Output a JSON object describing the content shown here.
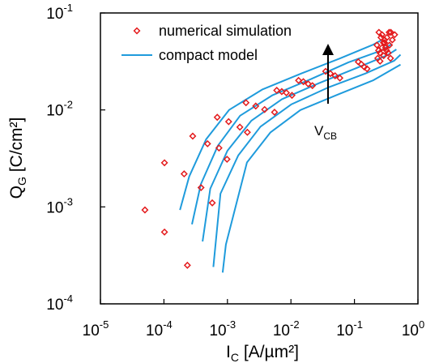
{
  "chart_data": {
    "type": "scatter",
    "title": "",
    "xlabel": {
      "main": "I",
      "sub": "C",
      "unit": " [A/µm²]"
    },
    "ylabel": {
      "main": "Q",
      "sub": "G",
      "unit": " [C/cm²]"
    },
    "x_scale": "log",
    "y_scale": "log",
    "xlim": [
      1e-05,
      1
    ],
    "ylim": [
      0.0001,
      0.1
    ],
    "x_ticks": [
      {
        "base": "10",
        "exp": "-5",
        "value": 1e-05
      },
      {
        "base": "10",
        "exp": "-4",
        "value": 0.0001
      },
      {
        "base": "10",
        "exp": "-3",
        "value": 0.001
      },
      {
        "base": "10",
        "exp": "-2",
        "value": 0.01
      },
      {
        "base": "10",
        "exp": "-1",
        "value": 0.1
      },
      {
        "base": "10",
        "exp": "0",
        "value": 1
      }
    ],
    "y_ticks": [
      {
        "base": "10",
        "exp": "-4",
        "value": 0.0001
      },
      {
        "base": "10",
        "exp": "-3",
        "value": 0.001
      },
      {
        "base": "10",
        "exp": "-2",
        "value": 0.01
      },
      {
        "base": "10",
        "exp": "-1",
        "value": 0.1
      }
    ],
    "grid": false,
    "legend": {
      "placement": "top-left",
      "entries": [
        {
          "label": "numerical simulation",
          "marker": "diamond",
          "color": "#e41a1c"
        },
        {
          "label": "compact model",
          "marker": "line",
          "color": "#1f9bdc"
        }
      ]
    },
    "annotation": {
      "main": "V",
      "sub": "CB",
      "arrow": "up",
      "x": 0.03,
      "y_from": 0.012,
      "y_to": 0.04
    },
    "series": [
      {
        "kind": "markers",
        "points": [
          [
            5.02e-05,
            0.00093
          ],
          [
            0.000102,
            0.00055
          ],
          [
            0.000234,
            0.00025
          ],
          [
            0.000102,
            0.00285
          ],
          [
            0.000208,
            0.00219
          ],
          [
            0.000384,
            0.00158
          ],
          [
            0.000577,
            0.0011
          ],
          [
            0.000284,
            0.00537
          ],
          [
            0.000486,
            0.00448
          ],
          [
            0.000736,
            0.00405
          ],
          [
            0.000985,
            0.0031
          ],
          [
            0.000691,
            0.0084
          ],
          [
            0.001045,
            0.00757
          ],
          [
            0.00157,
            0.00665
          ],
          [
            0.00206,
            0.00588
          ],
          [
            0.00196,
            0.01187
          ],
          [
            0.00279,
            0.01097
          ],
          [
            0.00385,
            0.0101
          ],
          [
            0.00552,
            0.00947
          ],
          [
            0.00598,
            0.01593
          ],
          [
            0.00717,
            0.01547
          ],
          [
            0.00847,
            0.01503
          ],
          [
            0.01038,
            0.01414
          ],
          [
            0.0132,
            0.02015
          ],
          [
            0.0157,
            0.01958
          ],
          [
            0.0187,
            0.01855
          ],
          [
            0.0218,
            0.01781
          ],
          [
            0.0352,
            0.025
          ],
          [
            0.0418,
            0.02371
          ],
          [
            0.0496,
            0.0225
          ],
          [
            0.0589,
            0.02133
          ],
          [
            0.115,
            0.03133
          ],
          [
            0.128,
            0.02965
          ],
          [
            0.143,
            0.02771
          ],
          [
            0.158,
            0.02657
          ],
          [
            0.233,
            0.0341
          ],
          [
            0.253,
            0.0387
          ],
          [
            0.272,
            0.0438
          ],
          [
            0.298,
            0.0494
          ],
          [
            0.325,
            0.0559
          ],
          [
            0.352,
            0.0631
          ],
          [
            0.243,
            0.0631
          ],
          [
            0.262,
            0.0559
          ],
          [
            0.286,
            0.0494
          ],
          [
            0.309,
            0.0438
          ],
          [
            0.34,
            0.0387
          ],
          [
            0.37,
            0.0341
          ],
          [
            0.253,
            0.0318
          ],
          [
            0.289,
            0.03632
          ],
          [
            0.321,
            0.0411
          ],
          [
            0.356,
            0.0466
          ],
          [
            0.395,
            0.0528
          ],
          [
            0.43,
            0.0597
          ],
          [
            0.272,
            0.0597
          ],
          [
            0.298,
            0.0528
          ],
          [
            0.226,
            0.0466
          ],
          [
            0.24,
            0.0411
          ],
          [
            0.374,
            0.0631
          ]
        ]
      },
      {
        "kind": "line",
        "points": [
          [
            0.000179,
            0.00093
          ],
          [
            0.00025,
            0.00206
          ],
          [
            0.000463,
            0.005
          ],
          [
            0.00106,
            0.01
          ],
          [
            0.00352,
            0.0162
          ],
          [
            0.0147,
            0.0238
          ],
          [
            0.0593,
            0.034
          ],
          [
            0.196,
            0.047
          ],
          [
            0.266,
            0.0525
          ]
        ]
      },
      {
        "kind": "line",
        "points": [
          [
            0.000276,
            0.00066
          ],
          [
            0.00038,
            0.00171
          ],
          [
            0.000708,
            0.00428
          ],
          [
            0.00158,
            0.00872
          ],
          [
            0.00515,
            0.0142
          ],
          [
            0.0207,
            0.0208
          ],
          [
            0.0804,
            0.031
          ],
          [
            0.266,
            0.041
          ],
          [
            0.375,
            0.0472
          ]
        ]
      },
      {
        "kind": "line",
        "points": [
          [
            0.000406,
            0.00044
          ],
          [
            0.000537,
            0.00154
          ],
          [
            0.001,
            0.0038
          ],
          [
            0.00237,
            0.00772
          ],
          [
            0.00721,
            0.0129
          ],
          [
            0.0278,
            0.0189
          ],
          [
            0.108,
            0.0271
          ],
          [
            0.336,
            0.0369
          ],
          [
            0.458,
            0.0421
          ]
        ]
      },
      {
        "kind": "line",
        "points": [
          [
            0.000599,
            0.00024
          ],
          [
            0.000776,
            0.00137
          ],
          [
            0.00148,
            0.00339
          ],
          [
            0.00331,
            0.00672
          ],
          [
            0.0101,
            0.0114
          ],
          [
            0.0383,
            0.017
          ],
          [
            0.148,
            0.0237
          ],
          [
            0.419,
            0.0321
          ],
          [
            0.532,
            0.0371
          ]
        ]
      },
      {
        "kind": "line",
        "points": [
          [
            0.00084,
            0.00021
          ],
          [
            0.000945,
            0.00041
          ],
          [
            0.00203,
            0.00287
          ],
          [
            0.00473,
            0.00584
          ],
          [
            0.0141,
            0.00998
          ],
          [
            0.0533,
            0.0143
          ],
          [
            0.2,
            0.0203
          ],
          [
            0.532,
            0.0293
          ]
        ]
      }
    ]
  }
}
